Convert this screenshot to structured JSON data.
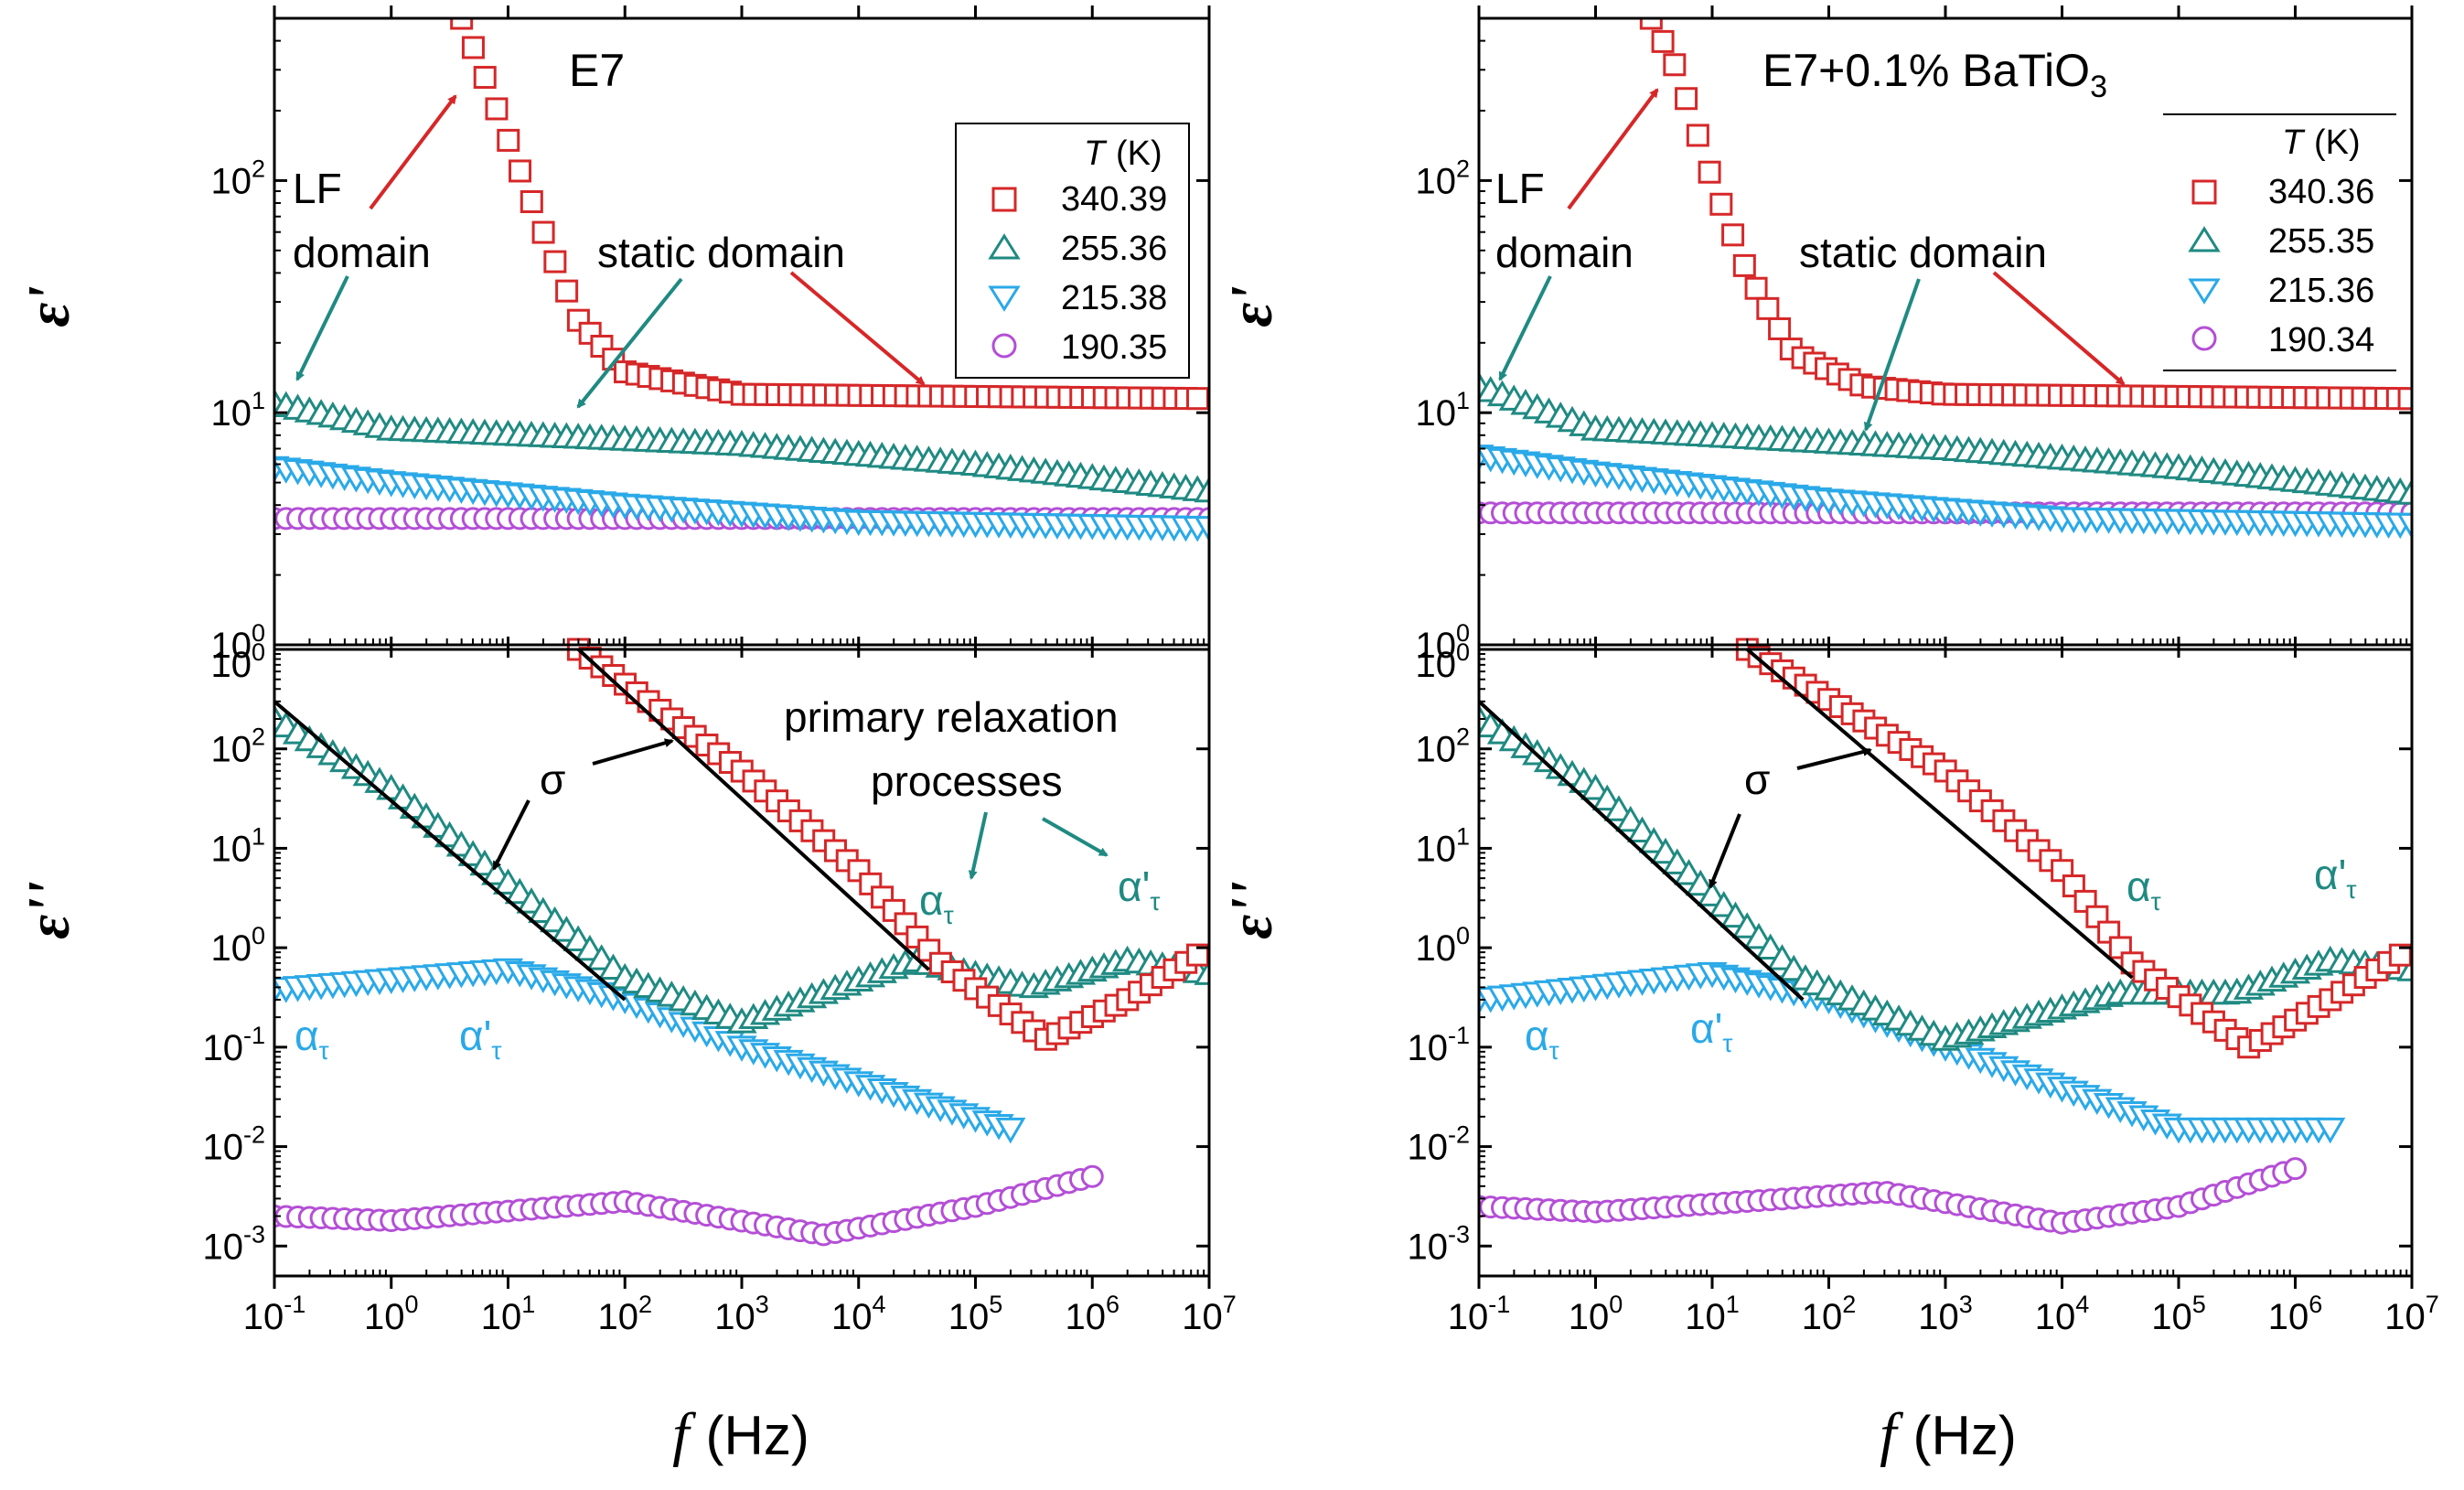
{
  "figure": {
    "xlabel_symbol": "f",
    "xlabel_unit": "(Hz)",
    "upper_ylabel": "ε'",
    "lower_ylabel": "ε''",
    "temperature_header": "T",
    "temperature_unit": "(K)",
    "x_tick_labels": [
      "10-1",
      "100",
      "101",
      "102",
      "103",
      "104",
      "105",
      "106",
      "107"
    ],
    "upper_y_tick_labels": [
      "100",
      "101",
      "102"
    ],
    "lower_y_tick_labels": [
      "10-3",
      "10-2",
      "10-1",
      "100",
      "101",
      "102",
      "100"
    ]
  },
  "colors": {
    "c340": "#d62728",
    "c255": "#1f8a82",
    "c215": "#2aa9e8",
    "c190": "#b44fd6",
    "fit": "#000000"
  },
  "icons": {
    "340": "square-marker",
    "255": "triangle-up-marker",
    "215": "triangle-down-marker",
    "190": "circle-marker"
  },
  "chart_data": [
    {
      "type": "scatter",
      "title": "E7",
      "xscale": "log",
      "yscale": "log",
      "xlim": [
        0.1,
        10000000
      ],
      "ylim_upper": [
        1,
        500
      ],
      "ylim_lower": [
        0.0005,
        1000
      ],
      "legend_placement": "top-right",
      "legend": [
        "340.39",
        "255.36",
        "215.38",
        "190.35"
      ],
      "annotations": {
        "lf1": "LF",
        "lf2": "domain",
        "static": "static domain",
        "sigma": "σ",
        "primary1": "primary relaxation",
        "primary2": "processes",
        "alpha": "α",
        "alpha_prime": "α'",
        "tau": "τ"
      },
      "series": [
        {
          "name": "340.39",
          "eps_prime": [
            [
              4,
              500
            ],
            [
              6,
              300
            ],
            [
              10,
              150
            ],
            [
              20,
              60
            ],
            [
              40,
              25
            ],
            [
              100,
              15
            ],
            [
              1000,
              12
            ],
            [
              10000000,
              11.5
            ]
          ],
          "eps_double_prime": [
            [
              40,
              1000
            ],
            [
              1000,
              60
            ],
            [
              10000,
              6
            ],
            [
              50000,
              0.7
            ],
            [
              400000,
              0.12
            ],
            [
              2000000,
              0.3
            ],
            [
              10000000,
              1.0
            ]
          ]
        },
        {
          "name": "255.36",
          "eps_prime": [
            [
              0.1,
              11
            ],
            [
              1,
              8.5
            ],
            [
              1000,
              7.3
            ],
            [
              100000,
              6
            ],
            [
              10000000,
              4.6
            ]
          ],
          "eps_double_prime": [
            [
              0.1,
              200
            ],
            [
              1,
              40
            ],
            [
              100,
              0.5
            ],
            [
              1000,
              0.18
            ],
            [
              30000,
              0.75
            ],
            [
              300000,
              0.4
            ],
            [
              2000000,
              0.75
            ],
            [
              10000000,
              0.55
            ]
          ]
        },
        {
          "name": "215.38",
          "eps_prime": [
            [
              0.1,
              5.8
            ],
            [
              1,
              5.0
            ],
            [
              100,
              4.0
            ],
            [
              10000,
              3.4
            ],
            [
              10000000,
              3.2
            ]
          ],
          "eps_double_prime": [
            [
              0.1,
              0.38
            ],
            [
              10,
              0.6
            ],
            [
              100,
              0.3
            ],
            [
              1000,
              0.1
            ],
            [
              200000,
              0.015
            ]
          ]
        },
        {
          "name": "190.35",
          "eps_prime": [
            [
              0.1,
              3.5
            ],
            [
              10000000,
              3.5
            ]
          ],
          "eps_double_prime": [
            [
              0.1,
              0.002
            ],
            [
              1,
              0.0018
            ],
            [
              100,
              0.0028
            ],
            [
              5000,
              0.0013
            ],
            [
              100000,
              0.0025
            ],
            [
              1000000,
              0.005
            ]
          ]
        }
      ]
    },
    {
      "type": "scatter",
      "title": "E7+0.1% BaTiO",
      "title_subscript": "3",
      "xscale": "log",
      "yscale": "log",
      "xlim": [
        0.1,
        10000000
      ],
      "ylim_upper": [
        1,
        500
      ],
      "ylim_lower": [
        0.0005,
        1000
      ],
      "legend_placement": "top-right",
      "legend": [
        "340.36",
        "255.35",
        "215.36",
        "190.34"
      ],
      "annotations": {
        "lf1": "LF",
        "lf2": "domain",
        "static": "static domain",
        "sigma": "σ",
        "alpha": "α",
        "alpha_prime": "α'",
        "tau": "τ"
      },
      "series": [
        {
          "name": "340.36",
          "eps_prime": [
            [
              3,
              500
            ],
            [
              5,
              300
            ],
            [
              10,
              100
            ],
            [
              20,
              40
            ],
            [
              50,
              18
            ],
            [
              200,
              13
            ],
            [
              1000,
              12
            ],
            [
              10000000,
              11.5
            ]
          ],
          "eps_double_prime": [
            [
              20,
              1000
            ],
            [
              1000,
              60
            ],
            [
              10000,
              6
            ],
            [
              40000,
              0.7
            ],
            [
              400000,
              0.1
            ],
            [
              2000000,
              0.3
            ],
            [
              10000000,
              1.0
            ]
          ]
        },
        {
          "name": "255.35",
          "eps_prime": [
            [
              0.1,
              13
            ],
            [
              1,
              8.5
            ],
            [
              1000,
              7.0
            ],
            [
              100000,
              5.8
            ],
            [
              10000000,
              4.5
            ]
          ],
          "eps_double_prime": [
            [
              0.1,
              200
            ],
            [
              1,
              40
            ],
            [
              60,
              0.5
            ],
            [
              1000,
              0.12
            ],
            [
              30000,
              0.35
            ],
            [
              300000,
              0.35
            ],
            [
              2000000,
              0.75
            ],
            [
              10000000,
              0.6
            ]
          ]
        },
        {
          "name": "215.36",
          "eps_prime": [
            [
              0.1,
              6.5
            ],
            [
              1,
              5.5
            ],
            [
              100,
              4.2
            ],
            [
              10000,
              3.5
            ],
            [
              10000000,
              3.3
            ]
          ],
          "eps_double_prime": [
            [
              0.1,
              0.3
            ],
            [
              10,
              0.55
            ],
            [
              100,
              0.3
            ],
            [
              1000,
              0.1
            ],
            [
              100000,
              0.015
            ],
            [
              2500000,
              0.015
            ]
          ]
        },
        {
          "name": "190.34",
          "eps_prime": [
            [
              0.1,
              3.7
            ],
            [
              10000000,
              3.7
            ]
          ],
          "eps_double_prime": [
            [
              0.1,
              0.0025
            ],
            [
              1,
              0.0022
            ],
            [
              300,
              0.0035
            ],
            [
              10000,
              0.0017
            ],
            [
              100000,
              0.0025
            ],
            [
              1000000,
              0.006
            ]
          ]
        }
      ]
    }
  ]
}
